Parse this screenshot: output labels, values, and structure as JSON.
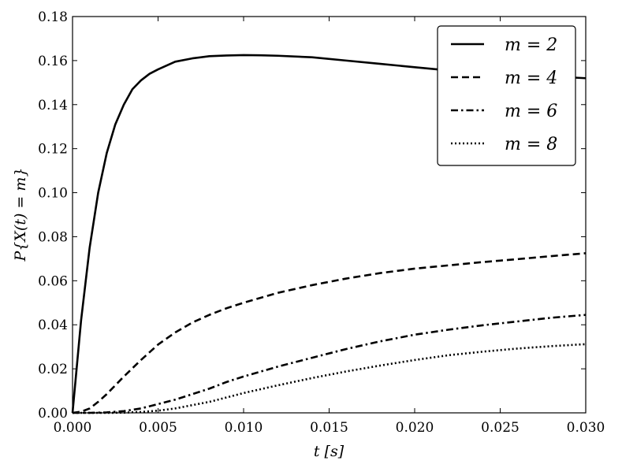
{
  "chart_data": {
    "type": "line",
    "xlabel": "t [s]",
    "ylabel": "P{X(t) = m}",
    "xlim": [
      0.0,
      0.03
    ],
    "ylim": [
      0.0,
      0.18
    ],
    "x_ticks": [
      "0.000",
      "0.005",
      "0.010",
      "0.015",
      "0.020",
      "0.025",
      "0.030"
    ],
    "y_ticks": [
      "0.00",
      "0.02",
      "0.04",
      "0.06",
      "0.08",
      "0.10",
      "0.12",
      "0.14",
      "0.16",
      "0.18"
    ],
    "legend_position": "top-right",
    "grid": false,
    "series": [
      {
        "name": "m = 2",
        "style": "solid",
        "x": [
          0.0,
          0.0005,
          0.001,
          0.0015,
          0.002,
          0.0025,
          0.003,
          0.0035,
          0.004,
          0.0045,
          0.005,
          0.006,
          0.007,
          0.008,
          0.009,
          0.01,
          0.011,
          0.012,
          0.014,
          0.016,
          0.018,
          0.02,
          0.022,
          0.024,
          0.026,
          0.028,
          0.03
        ],
        "y": [
          0.0,
          0.042,
          0.075,
          0.1,
          0.118,
          0.131,
          0.14,
          0.147,
          0.151,
          0.154,
          0.156,
          0.1595,
          0.161,
          0.162,
          0.1623,
          0.1625,
          0.1624,
          0.1622,
          0.1615,
          0.16,
          0.1585,
          0.157,
          0.1555,
          0.154,
          0.1535,
          0.1528,
          0.152
        ]
      },
      {
        "name": "m = 4",
        "style": "dashed",
        "x": [
          0.0,
          0.0005,
          0.001,
          0.0015,
          0.002,
          0.0025,
          0.003,
          0.004,
          0.005,
          0.006,
          0.007,
          0.008,
          0.009,
          0.01,
          0.012,
          0.014,
          0.016,
          0.018,
          0.02,
          0.022,
          0.024,
          0.026,
          0.028,
          0.03
        ],
        "y": [
          0.0,
          0.0005,
          0.002,
          0.005,
          0.0085,
          0.0125,
          0.0165,
          0.024,
          0.031,
          0.0365,
          0.041,
          0.0445,
          0.0475,
          0.05,
          0.0545,
          0.058,
          0.061,
          0.0635,
          0.0655,
          0.067,
          0.0685,
          0.0698,
          0.0712,
          0.0725
        ]
      },
      {
        "name": "m = 6",
        "style": "dashdot",
        "x": [
          0.0,
          0.001,
          0.002,
          0.003,
          0.004,
          0.005,
          0.006,
          0.007,
          0.008,
          0.009,
          0.01,
          0.012,
          0.014,
          0.016,
          0.018,
          0.02,
          0.022,
          0.024,
          0.026,
          0.028,
          0.03
        ],
        "y": [
          0.0,
          0.0,
          0.0002,
          0.0008,
          0.002,
          0.004,
          0.006,
          0.0085,
          0.011,
          0.014,
          0.0165,
          0.021,
          0.025,
          0.029,
          0.0325,
          0.0355,
          0.0378,
          0.0398,
          0.0415,
          0.0432,
          0.0445
        ]
      },
      {
        "name": "m = 8",
        "style": "dotted",
        "x": [
          0.0,
          0.001,
          0.002,
          0.003,
          0.004,
          0.005,
          0.006,
          0.007,
          0.008,
          0.009,
          0.01,
          0.012,
          0.014,
          0.016,
          0.018,
          0.02,
          0.022,
          0.024,
          0.026,
          0.028,
          0.03
        ],
        "y": [
          0.0,
          0.0,
          0.0,
          0.0001,
          0.0004,
          0.001,
          0.002,
          0.0035,
          0.005,
          0.007,
          0.009,
          0.0125,
          0.0158,
          0.0188,
          0.0215,
          0.024,
          0.0262,
          0.0278,
          0.0292,
          0.0303,
          0.0312
        ]
      }
    ]
  }
}
